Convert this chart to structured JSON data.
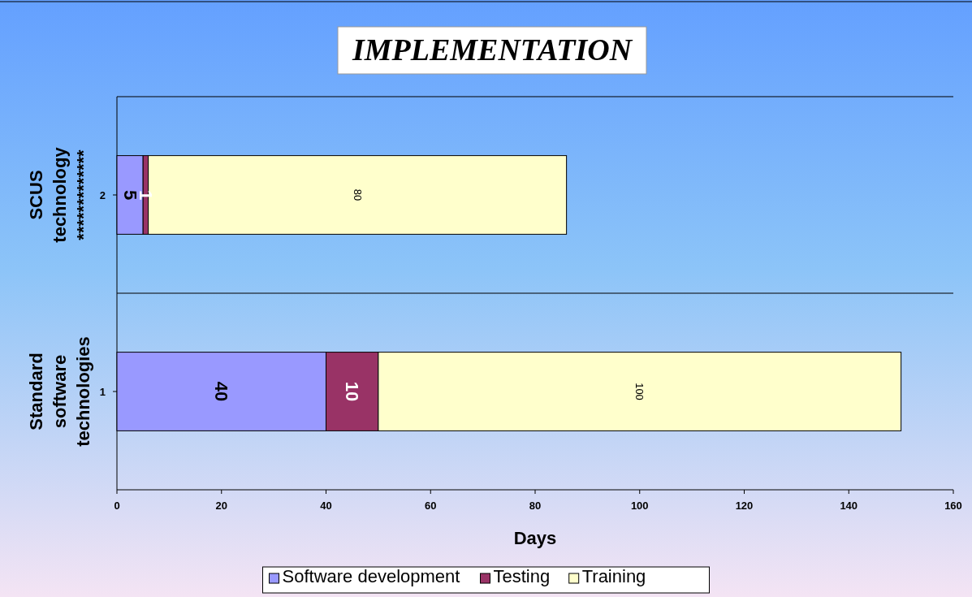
{
  "chart_data": {
    "type": "bar",
    "orientation": "horizontal",
    "stacked": true,
    "title": "IMPLEMENTATION",
    "xlabel": "Days",
    "categories": [
      "2",
      "1"
    ],
    "series": [
      {
        "name": "Software development",
        "color": "#9999ff",
        "values": [
          5,
          40
        ]
      },
      {
        "name": "Testing",
        "color": "#993366",
        "values": [
          1,
          10
        ]
      },
      {
        "name": "Training",
        "color": "#ffffcc",
        "values": [
          80,
          100
        ]
      }
    ],
    "xlim": [
      0,
      160
    ],
    "xticks": [
      0,
      20,
      40,
      60,
      80,
      100,
      120,
      140,
      160
    ],
    "annotations": [
      "SCUS technology *************",
      "Standard software technologies"
    ],
    "data_labels": true,
    "grid": "y",
    "legend": "bottom"
  }
}
